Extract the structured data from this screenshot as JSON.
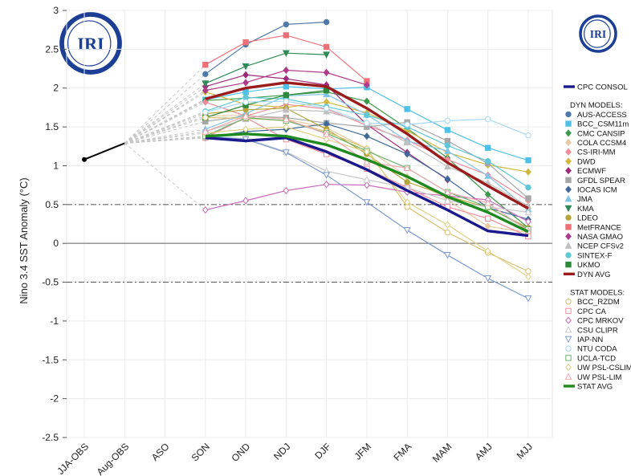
{
  "chart_data": {
    "type": "line",
    "title": "",
    "xlabel": "",
    "ylabel": "Nino 3.4 SST Anomaly (°C)",
    "ylim": [
      -2.5,
      3
    ],
    "yticks": [
      "3",
      "2.5",
      "2",
      "1.5",
      "1",
      "0.5",
      "0",
      "-0.5",
      "-1",
      "-1.5",
      "-2",
      "-2.5"
    ],
    "categories": [
      "JJA-OBS",
      "Aug-OBS",
      "ASO",
      "SON",
      "OND",
      "NDJ",
      "DJF",
      "JFM",
      "FMA",
      "MAM",
      "AMJ",
      "MJJ"
    ],
    "reference_lines": [
      0.5,
      0,
      -0.5
    ],
    "logo_text": "IRI",
    "observed": {
      "name": "",
      "color": "#000000",
      "values": [
        1.08,
        1.29
      ]
    },
    "series": [
      {
        "name": "CPC CONSOL",
        "group": "cpc",
        "color": "#1a1a8c",
        "marker": "none",
        "values": [
          null,
          null,
          null,
          1.36,
          1.32,
          1.36,
          1.18,
          0.95,
          0.68,
          0.43,
          0.16,
          0.1
        ]
      },
      {
        "name": "AUS-ACCESS",
        "group": "dyn",
        "color": "#4f79a8",
        "marker": "circle",
        "values": [
          null,
          null,
          null,
          2.18,
          2.56,
          2.82,
          2.85,
          null,
          null,
          null,
          null,
          null
        ]
      },
      {
        "name": "BCC_CSM11m",
        "group": "dyn",
        "color": "#4fc0e8",
        "marker": "square",
        "values": [
          null,
          null,
          null,
          1.85,
          1.95,
          2.02,
          1.99,
          2.01,
          1.73,
          1.46,
          1.23,
          1.07
        ]
      },
      {
        "name": "CMC CANSIP",
        "group": "dyn",
        "color": "#3a9a4a",
        "marker": "diamond",
        "values": [
          null,
          null,
          null,
          1.84,
          1.87,
          1.91,
          1.95,
          1.83,
          1.48,
          1.1,
          0.63,
          0.2
        ]
      },
      {
        "name": "COLA CCSM4",
        "group": "dyn",
        "color": "#e9c99f",
        "marker": "diamond",
        "values": [
          null,
          null,
          null,
          1.64,
          1.65,
          1.6,
          1.49,
          1.22,
          0.86,
          0.56,
          0.22,
          0.14
        ]
      },
      {
        "name": "CS-IRI-MM",
        "group": "dyn",
        "color": "#f08c9a",
        "marker": "diamond",
        "values": [
          null,
          null,
          null,
          1.82,
          1.64,
          1.79,
          1.73,
          1.52,
          1.33,
          1.08,
          0.88,
          0.55
        ]
      },
      {
        "name": "DWD",
        "group": "dyn",
        "color": "#d4b63c",
        "marker": "diamond",
        "values": [
          null,
          null,
          null,
          1.95,
          1.79,
          1.75,
          1.82,
          1.68,
          1.45,
          1.17,
          1.01,
          0.92
        ]
      },
      {
        "name": "ECMWF",
        "group": "dyn",
        "color": "#9c2b7a",
        "marker": "diamond",
        "values": [
          null,
          null,
          null,
          2.02,
          2.17,
          2.12,
          2.04,
          1.53,
          1.17,
          0.82,
          null,
          null
        ]
      },
      {
        "name": "GFDL SPEAR",
        "group": "dyn",
        "color": "#a6a6a6",
        "marker": "square",
        "values": [
          null,
          null,
          null,
          1.57,
          1.64,
          1.62,
          1.55,
          1.5,
          1.56,
          1.32,
          1.03,
          0.58
        ]
      },
      {
        "name": "IOCAS ICM",
        "group": "dyn",
        "color": "#3d6a9a",
        "marker": "diamond",
        "values": [
          null,
          null,
          null,
          1.36,
          1.44,
          1.47,
          1.54,
          1.38,
          1.15,
          0.83,
          0.46,
          0.31
        ]
      },
      {
        "name": "JMA",
        "group": "dyn",
        "color": "#7fc4e6",
        "marker": "triangle-up",
        "values": [
          null,
          null,
          null,
          1.47,
          1.67,
          1.9,
          1.92,
          1.66,
          1.32,
          1.19,
          0.87,
          0.44
        ]
      },
      {
        "name": "KMA",
        "group": "dyn",
        "color": "#2e8b57",
        "marker": "triangle-down",
        "values": [
          null,
          null,
          null,
          2.06,
          2.28,
          2.45,
          2.43,
          null,
          null,
          null,
          null,
          null
        ]
      },
      {
        "name": "LDEO",
        "group": "dyn",
        "color": "#b5a53a",
        "marker": "circle",
        "values": [
          null,
          null,
          null,
          1.67,
          1.72,
          1.74,
          1.47,
          1.15,
          0.79,
          0.61,
          0.46,
          0.2
        ]
      },
      {
        "name": "MetFRANCE",
        "group": "dyn",
        "color": "#f0707a",
        "marker": "square",
        "values": [
          null,
          null,
          null,
          2.3,
          2.59,
          2.68,
          2.53,
          2.09,
          null,
          null,
          null,
          null
        ]
      },
      {
        "name": "NASA GMAO",
        "group": "dyn",
        "color": "#b03a8a",
        "marker": "diamond",
        "values": [
          null,
          null,
          null,
          1.97,
          2.07,
          2.23,
          2.2,
          2.04,
          null,
          null,
          null,
          null
        ]
      },
      {
        "name": "NCEP CFSv2",
        "group": "dyn",
        "color": "#c0c0c0",
        "marker": "triangle-up",
        "values": [
          null,
          null,
          null,
          1.44,
          1.6,
          1.72,
          1.7,
          1.55,
          1.3,
          0.99,
          0.78,
          0.48
        ]
      },
      {
        "name": "SINTEX-F",
        "group": "dyn",
        "color": "#5fc8d8",
        "marker": "circle",
        "values": [
          null,
          null,
          null,
          1.7,
          1.88,
          1.86,
          1.76,
          1.65,
          1.5,
          1.26,
          1.06,
          0.72
        ]
      },
      {
        "name": "UKMO",
        "group": "dyn",
        "color": "#2d8a3a",
        "marker": "square",
        "values": [
          null,
          null,
          null,
          1.62,
          1.78,
          1.91,
          1.97,
          null,
          null,
          null,
          null,
          null
        ]
      },
      {
        "name": "DYN AVG",
        "group": "dyn-avg",
        "color": "#9b1c1c",
        "marker": "none",
        "values": [
          null,
          null,
          null,
          1.86,
          2.0,
          2.07,
          2.02,
          1.74,
          1.41,
          1.04,
          0.74,
          0.45
        ]
      },
      {
        "name": "BCC_RZDM",
        "group": "stat",
        "color": "#d8c070",
        "marker": "open-circle",
        "values": [
          null,
          null,
          null,
          1.62,
          1.61,
          1.58,
          1.44,
          1.22,
          0.47,
          0.14,
          -0.12,
          -0.36
        ]
      },
      {
        "name": "CPC CA",
        "group": "stat",
        "color": "#f08c9a",
        "marker": "open-square",
        "values": [
          null,
          null,
          null,
          1.36,
          1.62,
          1.34,
          1.15,
          0.96,
          0.72,
          0.47,
          0.32,
          0.09
        ]
      },
      {
        "name": "CPC MRKOV",
        "group": "stat",
        "color": "#c968b8",
        "marker": "open-diamond",
        "values": [
          null,
          null,
          null,
          0.43,
          0.55,
          0.68,
          0.76,
          0.75,
          0.66,
          0.61,
          0.56,
          0.28
        ]
      },
      {
        "name": "CSU CLIPR",
        "group": "stat",
        "color": "#c8c8c8",
        "marker": "open-triangle",
        "values": [
          null,
          null,
          null,
          1.37,
          1.35,
          1.18,
          0.93,
          0.82,
          0.72,
          0.55,
          0.47,
          0.4
        ]
      },
      {
        "name": "IAP-NN",
        "group": "stat",
        "color": "#7a9ad0",
        "marker": "open-triangle-down",
        "values": [
          null,
          null,
          null,
          1.38,
          1.34,
          1.17,
          0.88,
          0.53,
          0.17,
          -0.15,
          -0.45,
          -0.71
        ]
      },
      {
        "name": "NTU CODA",
        "group": "stat",
        "color": "#a8d8f0",
        "marker": "open-circle",
        "values": [
          null,
          null,
          null,
          1.69,
          1.82,
          1.83,
          1.74,
          1.55,
          1.53,
          1.58,
          1.6,
          1.39
        ]
      },
      {
        "name": "UCLA-TCD",
        "group": "stat",
        "color": "#6ab46a",
        "marker": "open-square",
        "values": [
          null,
          null,
          null,
          1.38,
          1.62,
          1.58,
          1.42,
          1.19,
          0.97,
          0.66,
          0.47,
          0.18
        ]
      },
      {
        "name": "UW PSL-CSLIM",
        "group": "stat",
        "color": "#e0d080",
        "marker": "open-diamond",
        "values": [
          null,
          null,
          null,
          1.42,
          1.47,
          1.5,
          1.34,
          1.18,
          0.53,
          0.24,
          -0.1,
          -0.43
        ]
      },
      {
        "name": "UW PSL-LIM",
        "group": "stat",
        "color": "#f0a8b0",
        "marker": "open-triangle",
        "values": [
          null,
          null,
          null,
          1.44,
          1.64,
          1.6,
          1.41,
          1.05,
          0.97,
          0.66,
          0.52,
          0.16
        ]
      },
      {
        "name": "STAT AVG",
        "group": "stat-avg",
        "color": "#1f8a1f",
        "marker": "none",
        "values": [
          null,
          null,
          null,
          1.38,
          1.41,
          1.38,
          1.27,
          1.08,
          0.86,
          0.6,
          0.4,
          0.15
        ]
      }
    ],
    "legend": {
      "cpc_header": "",
      "dyn_header": "DYN MODELS:",
      "stat_header": "STAT MODELS:"
    }
  }
}
